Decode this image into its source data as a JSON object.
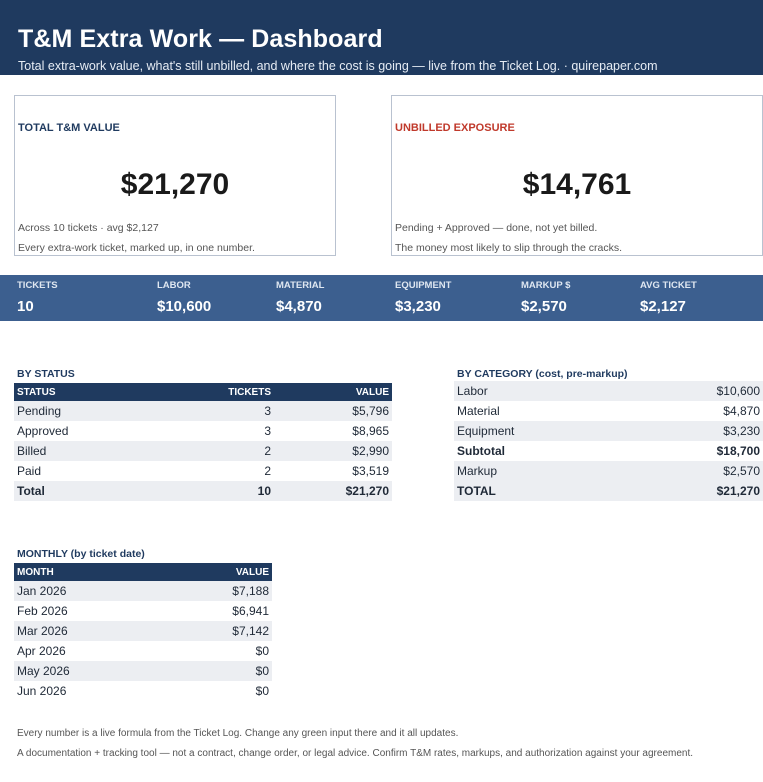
{
  "header": {
    "title": "T&M Extra Work — Dashboard",
    "subtitle": "Total extra-work value, what's still unbilled, and where the cost is going — live from the Ticket Log.  · quirepaper.com"
  },
  "cards": {
    "total": {
      "label": "TOTAL T&M VALUE",
      "value": "$21,270",
      "note1": "Across 10 tickets  ·  avg $2,127",
      "note2": "Every extra-work ticket, marked up, in one number."
    },
    "unbilled": {
      "label": "UNBILLED EXPOSURE",
      "value": "$14,761",
      "note1": "Pending + Approved — done, not yet billed.",
      "note2": "The money most likely to slip through the cracks."
    }
  },
  "kpis": [
    {
      "label": "TICKETS",
      "value": "10"
    },
    {
      "label": "LABOR",
      "value": "$10,600"
    },
    {
      "label": "MATERIAL",
      "value": "$4,870"
    },
    {
      "label": "EQUIPMENT",
      "value": "$3,230"
    },
    {
      "label": "MARKUP $",
      "value": "$2,570"
    },
    {
      "label": "AVG TICKET",
      "value": "$2,127"
    }
  ],
  "by_status": {
    "title": "BY STATUS",
    "headers": {
      "status": "STATUS",
      "tickets": "TICKETS",
      "value": "VALUE"
    },
    "rows": [
      {
        "status": "Pending",
        "tickets": "3",
        "value": "$5,796"
      },
      {
        "status": "Approved",
        "tickets": "3",
        "value": "$8,965"
      },
      {
        "status": "Billed",
        "tickets": "2",
        "value": "$2,990"
      },
      {
        "status": "Paid",
        "tickets": "2",
        "value": "$3,519"
      },
      {
        "status": "Total",
        "tickets": "10",
        "value": "$21,270"
      }
    ]
  },
  "by_category": {
    "title": "BY CATEGORY (cost, pre-markup)",
    "rows": [
      {
        "label": "Labor",
        "value": "$10,600"
      },
      {
        "label": "Material",
        "value": "$4,870"
      },
      {
        "label": "Equipment",
        "value": "$3,230"
      },
      {
        "label": "Subtotal",
        "value": "$18,700"
      },
      {
        "label": "Markup",
        "value": "$2,570"
      },
      {
        "label": "TOTAL",
        "value": "$21,270"
      }
    ]
  },
  "monthly": {
    "title": "MONTHLY (by ticket date)",
    "headers": {
      "month": "MONTH",
      "value": "VALUE"
    },
    "rows": [
      {
        "month": "Jan 2026",
        "value": "$7,188"
      },
      {
        "month": "Feb 2026",
        "value": "$6,941"
      },
      {
        "month": "Mar 2026",
        "value": "$7,142"
      },
      {
        "month": "Apr 2026",
        "value": "$0"
      },
      {
        "month": "May 2026",
        "value": "$0"
      },
      {
        "month": "Jun 2026",
        "value": "$0"
      }
    ]
  },
  "footer": {
    "line1": "Every number is a live formula from the Ticket Log. Change any green input there and it all updates.",
    "line2": "A documentation + tracking tool — not a contract, change order, or legal advice. Confirm T&M rates, markups, and authorization against your agreement."
  }
}
